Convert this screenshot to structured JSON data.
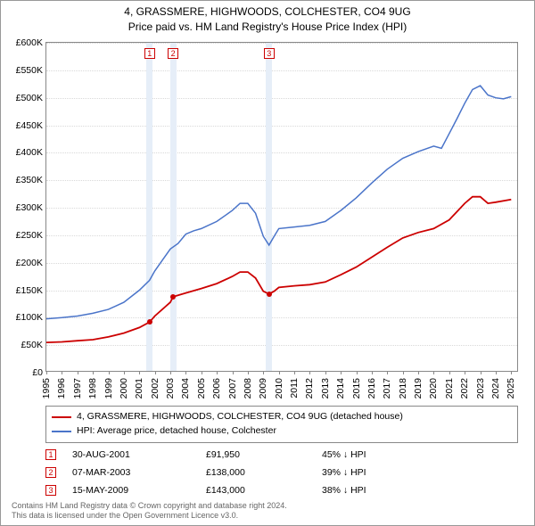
{
  "title": {
    "line1": "4, GRASSMERE, HIGHWOODS, COLCHESTER, CO4 9UG",
    "line2": "Price paid vs. HM Land Registry's House Price Index (HPI)"
  },
  "chart": {
    "type": "line",
    "background_color": "#ffffff",
    "grid_color": "#d9d9d9",
    "border_color": "#888888",
    "x": {
      "min": 1995,
      "max": 2025.5,
      "ticks": [
        1995,
        1996,
        1997,
        1998,
        1999,
        2000,
        2001,
        2002,
        2003,
        2004,
        2005,
        2006,
        2007,
        2008,
        2009,
        2010,
        2011,
        2012,
        2013,
        2014,
        2015,
        2016,
        2017,
        2018,
        2019,
        2020,
        2021,
        2022,
        2023,
        2024,
        2025
      ]
    },
    "y": {
      "min": 0,
      "max": 600000,
      "tick_step": 50000,
      "tick_labels": [
        "£0",
        "£50K",
        "£100K",
        "£150K",
        "£200K",
        "£250K",
        "£300K",
        "£350K",
        "£400K",
        "£450K",
        "£500K",
        "£550K",
        "£600K"
      ]
    },
    "series": [
      {
        "name": "hpi",
        "label": "HPI: Average price, detached house, Colchester",
        "color": "#4a74c9",
        "width": 1.5,
        "points": [
          [
            1995,
            98000
          ],
          [
            1996,
            100000
          ],
          [
            1997,
            103000
          ],
          [
            1998,
            108000
          ],
          [
            1999,
            115000
          ],
          [
            2000,
            128000
          ],
          [
            2001,
            150000
          ],
          [
            2001.66,
            168000
          ],
          [
            2002,
            185000
          ],
          [
            2002.5,
            205000
          ],
          [
            2003,
            225000
          ],
          [
            2003.5,
            235000
          ],
          [
            2004,
            252000
          ],
          [
            2004.5,
            258000
          ],
          [
            2005,
            262000
          ],
          [
            2006,
            275000
          ],
          [
            2007,
            295000
          ],
          [
            2007.5,
            308000
          ],
          [
            2008,
            308000
          ],
          [
            2008.5,
            290000
          ],
          [
            2009,
            248000
          ],
          [
            2009.37,
            232000
          ],
          [
            2009.7,
            248000
          ],
          [
            2010,
            262000
          ],
          [
            2011,
            265000
          ],
          [
            2012,
            268000
          ],
          [
            2013,
            275000
          ],
          [
            2014,
            295000
          ],
          [
            2015,
            318000
          ],
          [
            2016,
            345000
          ],
          [
            2017,
            370000
          ],
          [
            2018,
            390000
          ],
          [
            2019,
            402000
          ],
          [
            2020,
            412000
          ],
          [
            2020.5,
            408000
          ],
          [
            2021,
            435000
          ],
          [
            2021.5,
            462000
          ],
          [
            2022,
            490000
          ],
          [
            2022.5,
            515000
          ],
          [
            2023,
            522000
          ],
          [
            2023.5,
            505000
          ],
          [
            2024,
            500000
          ],
          [
            2024.5,
            498000
          ],
          [
            2025,
            502000
          ]
        ]
      },
      {
        "name": "property",
        "label": "4, GRASSMERE, HIGHWOODS, COLCHESTER, CO4 9UG (detached house)",
        "color": "#cc0000",
        "width": 1.8,
        "points": [
          [
            1995,
            55000
          ],
          [
            1996,
            56000
          ],
          [
            1997,
            58000
          ],
          [
            1998,
            60000
          ],
          [
            1999,
            65000
          ],
          [
            2000,
            72000
          ],
          [
            2001,
            82000
          ],
          [
            2001.66,
            91950
          ],
          [
            2002,
            103000
          ],
          [
            2003,
            128000
          ],
          [
            2003.18,
            138000
          ],
          [
            2004,
            145000
          ],
          [
            2005,
            153000
          ],
          [
            2006,
            162000
          ],
          [
            2007,
            175000
          ],
          [
            2007.5,
            183000
          ],
          [
            2008,
            183000
          ],
          [
            2008.5,
            172000
          ],
          [
            2009,
            148000
          ],
          [
            2009.37,
            143000
          ],
          [
            2009.7,
            148000
          ],
          [
            2010,
            155000
          ],
          [
            2011,
            158000
          ],
          [
            2012,
            160000
          ],
          [
            2013,
            165000
          ],
          [
            2014,
            178000
          ],
          [
            2015,
            192000
          ],
          [
            2016,
            210000
          ],
          [
            2017,
            228000
          ],
          [
            2018,
            245000
          ],
          [
            2019,
            255000
          ],
          [
            2020,
            262000
          ],
          [
            2021,
            278000
          ],
          [
            2022,
            308000
          ],
          [
            2022.5,
            320000
          ],
          [
            2023,
            320000
          ],
          [
            2023.5,
            308000
          ],
          [
            2024,
            310000
          ],
          [
            2025,
            315000
          ]
        ]
      }
    ],
    "sale_bands": {
      "color": "#e6eef8",
      "width_years": 0.4
    },
    "sale_markers": [
      {
        "n": "1",
        "x": 2001.66,
        "y": 91950
      },
      {
        "n": "2",
        "x": 2003.18,
        "y": 138000
      },
      {
        "n": "3",
        "x": 2009.37,
        "y": 143000
      }
    ],
    "marker_style": {
      "box_border": "#cc0000",
      "box_text": "#cc0000",
      "point_fill": "#cc0000",
      "point_radius": 3
    }
  },
  "legend": {
    "items": [
      {
        "color": "#cc0000",
        "label": "4, GRASSMERE, HIGHWOODS, COLCHESTER, CO4 9UG (detached house)"
      },
      {
        "color": "#4a74c9",
        "label": "HPI: Average price, detached house, Colchester"
      }
    ]
  },
  "sales_table": {
    "rows": [
      {
        "n": "1",
        "date": "30-AUG-2001",
        "price": "£91,950",
        "hpi": "45% ↓ HPI"
      },
      {
        "n": "2",
        "date": "07-MAR-2003",
        "price": "£138,000",
        "hpi": "39% ↓ HPI"
      },
      {
        "n": "3",
        "date": "15-MAY-2009",
        "price": "£143,000",
        "hpi": "38% ↓ HPI"
      }
    ]
  },
  "footer": {
    "line1": "Contains HM Land Registry data © Crown copyright and database right 2024.",
    "line2": "This data is licensed under the Open Government Licence v3.0."
  }
}
